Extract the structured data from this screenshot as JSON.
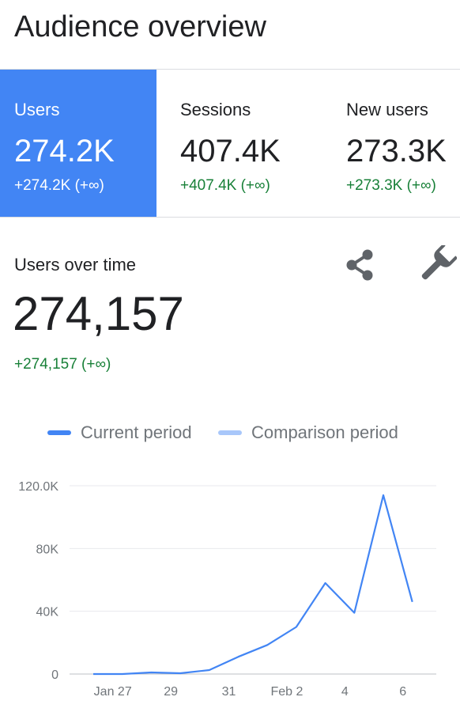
{
  "header": {
    "title": "Audience overview"
  },
  "metrics": [
    {
      "label": "Users",
      "value": "274.2K",
      "change": "+274.2K (+∞)"
    },
    {
      "label": "Sessions",
      "value": "407.4K",
      "change": "+407.4K (+∞)"
    },
    {
      "label": "New users",
      "value": "273.3K",
      "change": "+273.3K (+∞)"
    }
  ],
  "card": {
    "title": "Users over time",
    "value": "274,157",
    "change": "+274,157 (+∞)",
    "share_icon": "share-icon",
    "wrench_icon": "wrench-icon"
  },
  "legend": {
    "current": "Current period",
    "comparison": "Comparison period"
  },
  "colors": {
    "accent": "#4285f4",
    "comparison": "#a8c7fa",
    "positive": "#188038",
    "muted": "#70757a"
  },
  "chart_data": {
    "type": "line",
    "x_labels": [
      "Jan 27",
      "29",
      "31",
      "Feb 2",
      "4",
      "6"
    ],
    "y_tick_labels": [
      "0",
      "40K",
      "80K",
      "120.0K"
    ],
    "y_ticks": [
      0,
      40000,
      80000,
      120000
    ],
    "ylim": [
      0,
      120000
    ],
    "grid": true,
    "legend_placement": "top",
    "series": [
      {
        "name": "Current period",
        "values": [
          0,
          0,
          1000,
          500,
          2500,
          11000,
          18500,
          30000,
          58000,
          39000,
          114000,
          46000
        ]
      },
      {
        "name": "Comparison period",
        "values": []
      }
    ]
  }
}
